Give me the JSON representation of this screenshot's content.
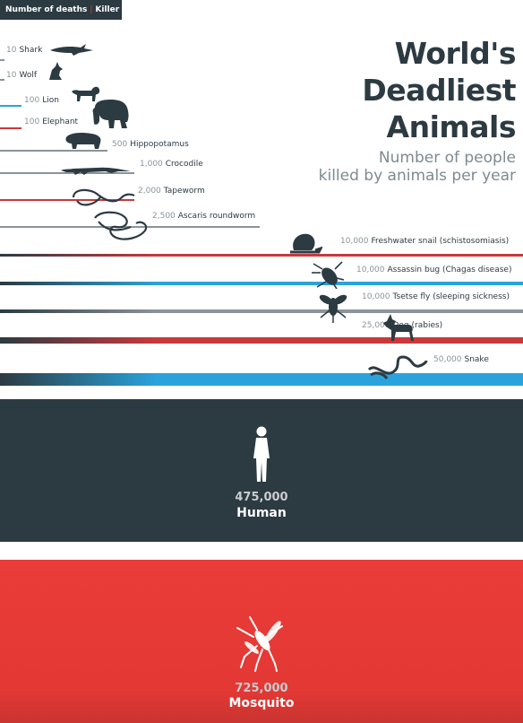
{
  "legend": {
    "metric": "Number of deaths",
    "subject": "Killer"
  },
  "title_lines": [
    "World's",
    "Deadliest",
    "Animals"
  ],
  "subtitle_lines": [
    "Number of people",
    "killed by animals per year"
  ],
  "colors": {
    "dark": "#2c3a42",
    "red": "#c9393b",
    "blue": "#2aa3dc",
    "mosquito": "#e53a36",
    "grey": "#8a9499"
  },
  "chart_data": {
    "type": "bar",
    "categories": [
      "Shark",
      "Wolf",
      "Lion",
      "Elephant",
      "Hippopotamus",
      "Crocodile",
      "Tapeworm",
      "Ascaris roundworm",
      "Freshwater snail (schistosomiasis)",
      "Assassin bug (Chagas disease)",
      "Tsetse fly (sleeping sickness)",
      "Dog (rabies)",
      "Snake",
      "Human",
      "Mosquito"
    ],
    "values": [
      10,
      10,
      100,
      100,
      500,
      1000,
      2000,
      2500,
      10000,
      10000,
      10000,
      25000,
      50000,
      475000,
      725000
    ],
    "value_labels": [
      "10",
      "10",
      "100",
      "100",
      "500",
      "1,000",
      "2,000",
      "2,500",
      "10,000",
      "10,000",
      "10,000",
      "25,000",
      "50,000",
      "475,000",
      "725,000"
    ],
    "series_colors": [
      "grey",
      "grey",
      "blue",
      "red",
      "grey",
      "grey",
      "red",
      "grey",
      "red",
      "blue",
      "grey",
      "red",
      "blue",
      "dark",
      "mosquito"
    ],
    "icons": [
      "shark-icon",
      "wolf-icon",
      "lion-icon",
      "elephant-icon",
      "hippopotamus-icon",
      "crocodile-icon",
      "tapeworm-icon",
      "roundworm-icon",
      "snail-icon",
      "assassin-bug-icon",
      "tsetse-fly-icon",
      "dog-icon",
      "snake-icon",
      "human-icon",
      "mosquito-icon"
    ]
  }
}
